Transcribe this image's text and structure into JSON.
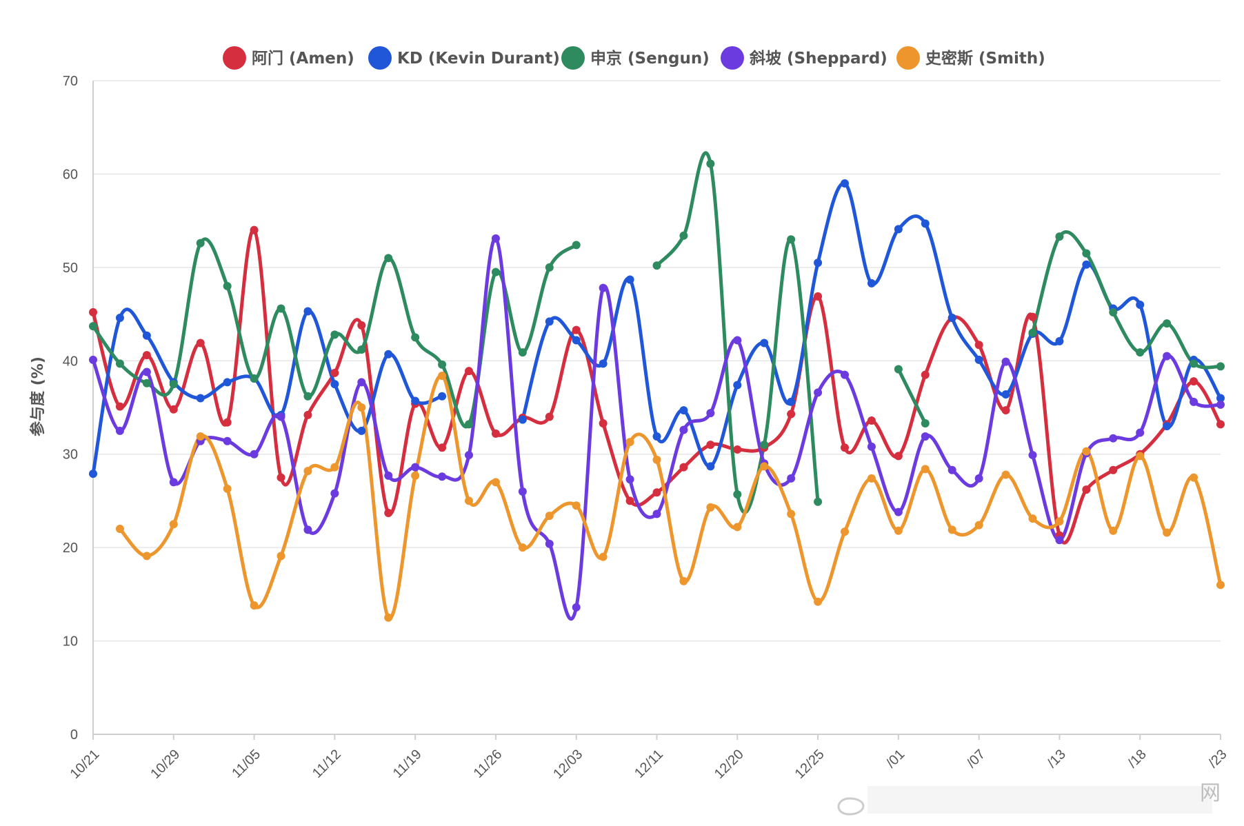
{
  "chart_data": {
    "type": "line",
    "title": "",
    "xlabel": "",
    "ylabel": "参与度 (%)",
    "ylim": [
      0,
      70
    ],
    "yticks": [
      0,
      10,
      20,
      30,
      40,
      50,
      60,
      70
    ],
    "x": [
      0,
      1,
      2,
      3,
      4,
      5,
      6,
      7,
      8,
      9,
      10,
      11,
      12,
      13,
      14,
      15,
      16,
      17,
      18,
      19,
      20,
      21,
      22,
      23,
      24,
      25,
      26,
      27,
      28,
      29,
      30,
      31,
      32,
      33,
      34,
      35,
      36,
      37,
      38,
      39,
      40,
      41,
      42
    ],
    "xticks": [
      {
        "i": 0,
        "label": "10/21"
      },
      {
        "i": 3,
        "label": "10/29"
      },
      {
        "i": 6,
        "label": "11/05"
      },
      {
        "i": 9,
        "label": "11/12"
      },
      {
        "i": 12,
        "label": "11/19"
      },
      {
        "i": 15,
        "label": "11/26"
      },
      {
        "i": 18,
        "label": "12/03"
      },
      {
        "i": 21,
        "label": "12/11"
      },
      {
        "i": 24,
        "label": "12/20"
      },
      {
        "i": 27,
        "label": "12/25"
      },
      {
        "i": 30,
        "label": "/01"
      },
      {
        "i": 33,
        "label": "/07"
      },
      {
        "i": 36,
        "label": "/13"
      },
      {
        "i": 39,
        "label": "/18"
      },
      {
        "i": 42,
        "label": "/23"
      }
    ],
    "legend_position": "top-center",
    "grid": true,
    "series": [
      {
        "name": "阿门 (Amen)",
        "color": "#d42e3f",
        "values": [
          45.2,
          35.1,
          40.6,
          34.8,
          41.9,
          33.4,
          54.0,
          27.5,
          34.2,
          38.7,
          43.8,
          23.7,
          35.4,
          30.7,
          38.9,
          32.2,
          33.9,
          34.0,
          43.3,
          33.3,
          25.0,
          25.9,
          28.6,
          31.0,
          30.5,
          30.7,
          34.3,
          46.9,
          30.7,
          33.6,
          29.8,
          38.5,
          44.6,
          41.7,
          34.7,
          44.7,
          21.3,
          26.2,
          28.3,
          30.0,
          33.2,
          37.8,
          33.2
        ]
      },
      {
        "name": "KD (Kevin Durant)",
        "color": "#2057d8",
        "values": [
          27.9,
          44.6,
          42.7,
          37.7,
          36.0,
          37.7,
          38.1,
          34.2,
          45.3,
          37.5,
          32.5,
          40.7,
          35.7,
          36.2,
          null,
          null,
          33.7,
          44.2,
          42.2,
          39.7,
          48.7,
          31.9,
          34.7,
          28.7,
          37.4,
          41.9,
          35.6,
          50.5,
          59.0,
          48.3,
          54.1,
          54.7,
          44.6,
          40.1,
          36.4,
          42.9,
          42.1,
          50.3,
          45.6,
          46.0,
          33.0,
          40.1,
          36.0
        ]
      },
      {
        "name": "申京 (Sengun)",
        "color": "#2e8a5f",
        "values": [
          43.7,
          39.7,
          37.6,
          37.5,
          52.6,
          48.0,
          38.1,
          45.6,
          36.2,
          42.8,
          41.2,
          51.0,
          42.5,
          39.6,
          33.2,
          49.5,
          40.9,
          50.0,
          52.4,
          null,
          null,
          50.2,
          53.4,
          61.1,
          25.7,
          31.0,
          53.0,
          24.9,
          null,
          null,
          39.1,
          33.3,
          null,
          null,
          null,
          43.0,
          53.3,
          51.5,
          45.2,
          40.9,
          44.0,
          39.7,
          39.4
        ]
      },
      {
        "name": "斜坡 (Sheppard)",
        "color": "#6b3be0",
        "values": [
          40.1,
          32.5,
          38.8,
          27.0,
          31.4,
          31.4,
          30.0,
          34.0,
          21.9,
          25.8,
          37.7,
          27.7,
          28.6,
          27.6,
          29.9,
          53.1,
          26.0,
          20.4,
          13.6,
          47.8,
          27.3,
          23.6,
          32.6,
          34.4,
          42.2,
          29.0,
          27.4,
          36.6,
          38.5,
          30.8,
          23.8,
          31.9,
          28.3,
          27.4,
          39.9,
          29.9,
          20.8,
          30.1,
          31.7,
          32.3,
          40.5,
          35.6,
          35.3
        ]
      },
      {
        "name": "史密斯 (Smith)",
        "color": "#ec962d",
        "values": [
          null,
          22.0,
          19.1,
          22.5,
          31.9,
          26.3,
          13.8,
          19.1,
          28.2,
          28.6,
          35.0,
          12.5,
          27.7,
          38.4,
          25.0,
          27.0,
          20.0,
          23.4,
          24.5,
          19.0,
          31.3,
          29.4,
          16.4,
          24.3,
          22.2,
          28.7,
          23.6,
          14.2,
          21.7,
          27.4,
          21.8,
          28.4,
          21.9,
          22.4,
          27.8,
          23.1,
          22.8,
          30.3,
          21.8,
          29.8,
          21.6,
          27.5,
          16.0
        ]
      }
    ]
  },
  "watermark": {
    "site": "网"
  }
}
